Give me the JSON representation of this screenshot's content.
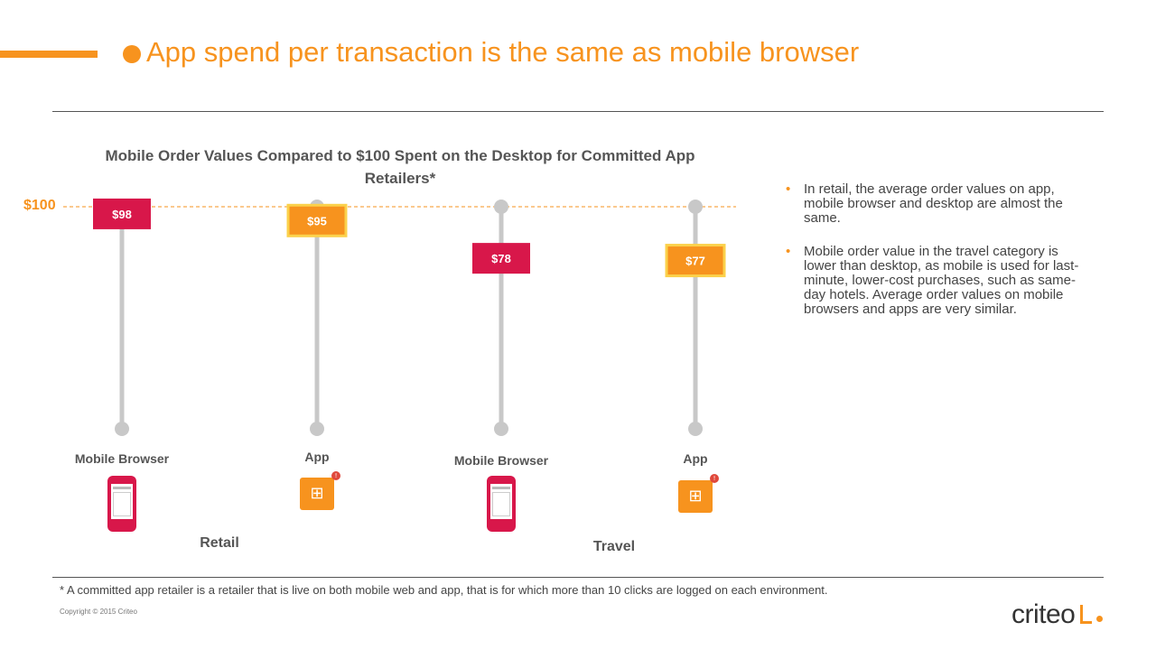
{
  "header": {
    "title": "App spend per transaction is the same as mobile browser"
  },
  "chart_data": {
    "type": "bar",
    "title": "Mobile Order Values Compared to $100 Spent on the Desktop for Committed App Retailers*",
    "reference_label": "$100",
    "reference_value": 100,
    "ylim": [
      0,
      100
    ],
    "categories": [
      "Mobile Browser",
      "App",
      "Mobile Browser",
      "App"
    ],
    "groups": [
      "Retail",
      "Travel"
    ],
    "values": [
      98,
      95,
      78,
      77
    ],
    "value_labels": [
      "$98",
      "$95",
      "$78",
      "$77"
    ],
    "colors": [
      "#d8174a",
      "#f7931e",
      "#d8174a",
      "#f7931e"
    ],
    "icons": [
      "mobile-phone-icon",
      "shopping-cart-icon",
      "mobile-phone-icon",
      "shopping-cart-icon"
    ]
  },
  "notes": {
    "bullets": [
      "In retail, the average order values on app, mobile browser and desktop are almost the same.",
      "Mobile order value in the travel category is lower than desktop, as mobile is used for last-minute, lower-cost purchases, such as same-day hotels. Average order values on mobile browsers and apps are very similar."
    ]
  },
  "footer": {
    "footnote": "* A committed app retailer is a retailer that is live on both mobile web and app, that is for which more than 10 clicks are logged on each environment.",
    "copyright": "Copyright © 2015 Criteo",
    "logo_text": "criteo"
  },
  "colors": {
    "accent": "#f7931e",
    "retail": "#d8174a",
    "stem": "#c8c8c8"
  }
}
